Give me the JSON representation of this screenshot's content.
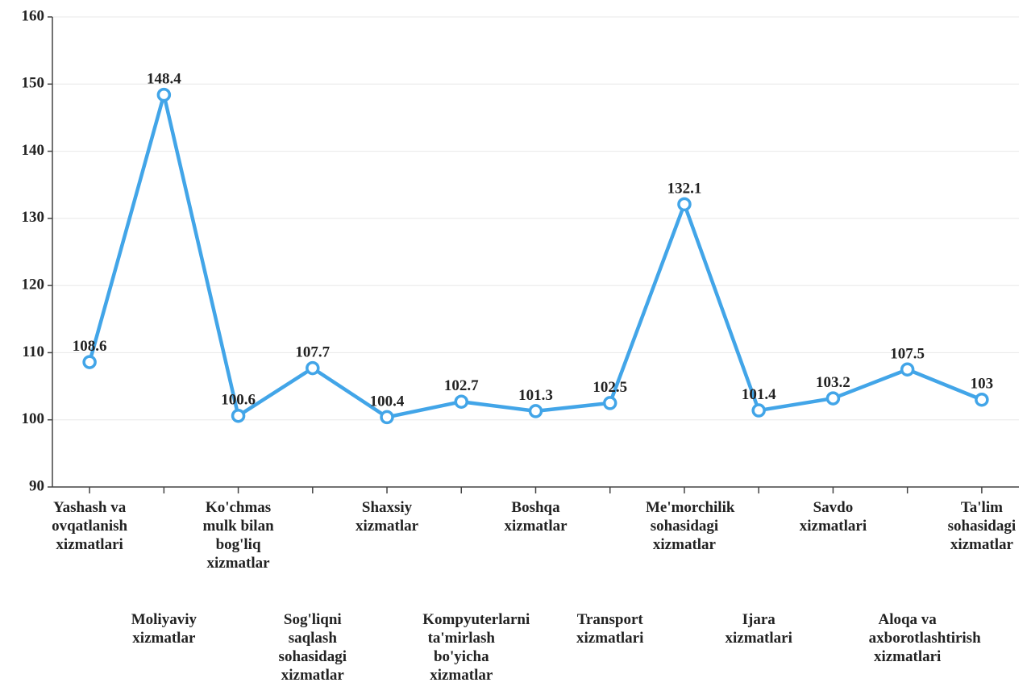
{
  "chart_data": {
    "type": "line",
    "categories": [
      "Yashash va ovqatlanish xizmatlari",
      "Moliyaviy xizmatlar",
      "Ko'chmas mulk bilan bog'liq xizmatlar",
      "Sog'liqni saqlash sohasidagi xizmatlar",
      "Shaxsiy xizmatlar",
      "Kompyuterlarni ta'mirlash bo'yicha xizmatlar",
      "Boshqa xizmatlar",
      "Transport xizmatlari",
      "Me'morchilik sohasidagi xizmatlar",
      "Ijara xizmatlari",
      "Savdo xizmatlari",
      "Aloqa va axborotlashtirish xizmatlari",
      "Ta'lim sohasidagi xizmatlar"
    ],
    "values": [
      108.6,
      148.4,
      100.6,
      107.7,
      100.4,
      102.7,
      101.3,
      102.5,
      132.1,
      101.4,
      103.2,
      107.5,
      103
    ],
    "color": "#42a5e8",
    "ylim": [
      90,
      160
    ],
    "yticks": [
      90,
      100,
      110,
      120,
      130,
      140,
      150,
      160
    ],
    "grid": true
  }
}
